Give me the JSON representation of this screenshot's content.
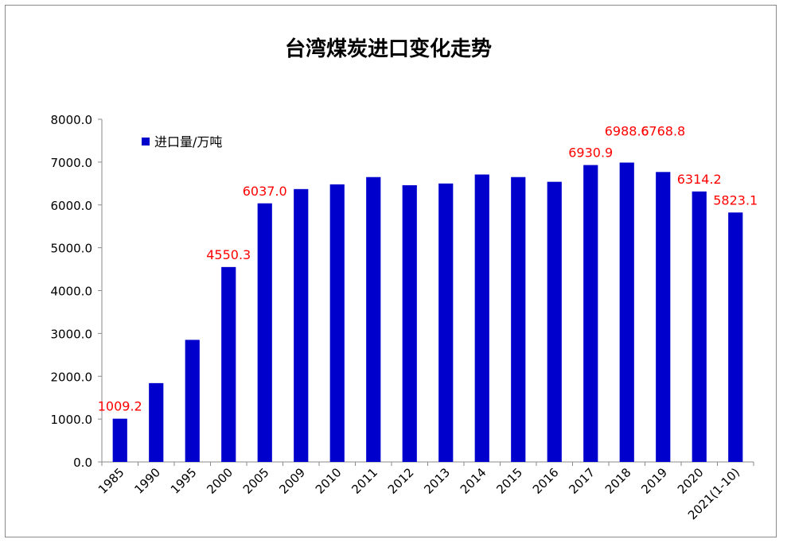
{
  "chart_data": {
    "type": "bar",
    "title": "台湾煤炭进口变化走势",
    "categories": [
      "1985",
      "1990",
      "1995",
      "2000",
      "2005",
      "2009",
      "2010",
      "2011",
      "2012",
      "2013",
      "2014",
      "2015",
      "2016",
      "2017",
      "2018",
      "2019",
      "2020",
      "2021(1-10)"
    ],
    "series": [
      {
        "name": "进口量/万吨",
        "values": [
          1009.2,
          1840,
          2850,
          4550.3,
          6037.0,
          6370,
          6480,
          6650,
          6460,
          6500,
          6710,
          6650,
          6540,
          6930.9,
          6988.6,
          6768.8,
          6314.2,
          5823.1
        ],
        "color": "#0000cc"
      }
    ],
    "data_labels": {
      "1985": "1009.2",
      "2000": "4550.3",
      "2005": "6037.0",
      "2017": "6930.9",
      "2018": "6988.6",
      "2019": "6768.8",
      "2020": "6314.2",
      "2021(1-10)": "5823.1"
    },
    "data_label_color": "#ff0000",
    "ylim": [
      0,
      8000
    ],
    "yticks": [
      "0.0",
      "1000.0",
      "2000.0",
      "3000.0",
      "4000.0",
      "5000.0",
      "6000.0",
      "7000.0",
      "8000.0"
    ],
    "grid": false,
    "legend_position": "top-left"
  }
}
